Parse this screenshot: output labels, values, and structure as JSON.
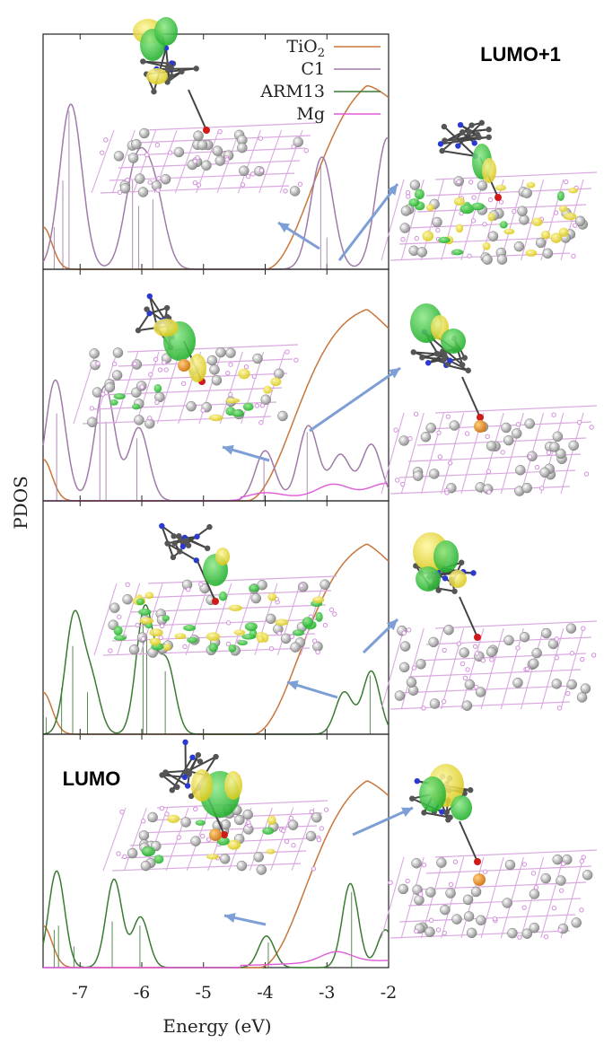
{
  "chart_data": {
    "type": "line",
    "xlabel": "Energy (eV)",
    "ylabel": "PDOS",
    "xlim": [
      -7.6,
      -2
    ],
    "x_ticks": [
      "-7",
      "-6",
      "-5",
      "-4",
      "-3",
      "-2"
    ],
    "x_tick_values": [
      -7,
      -6,
      -5,
      -4,
      -3,
      -2
    ],
    "legend": {
      "placement": "top-right",
      "entries": [
        {
          "name": "TiO2",
          "base": "TiO",
          "sub": "2",
          "color": "#c8763a"
        },
        {
          "name": "C1",
          "base": "C1",
          "sub": "",
          "color": "#a07aa8"
        },
        {
          "name": "ARM13",
          "base": "ARM13",
          "sub": "",
          "color": "#3a7a33"
        },
        {
          "name": "Mg",
          "base": "Mg",
          "sub": "",
          "color": "#e05ad8"
        }
      ]
    },
    "colors": {
      "TiO2": "#c8763a",
      "C1": "#a07aa8",
      "ARM13": "#3a7a33",
      "Mg": "#e05ad8"
    },
    "panels": [
      {
        "molecule": "C1",
        "orbital_label": "LUMO+1",
        "ti_onset": -4.0,
        "peaks": [
          [
            -7.15,
            0.78
          ],
          [
            -6.1,
            0.45
          ],
          [
            -5.8,
            0.35
          ],
          [
            -3.08,
            0.53
          ],
          [
            -2.02,
            0.62
          ]
        ],
        "width": 0.18,
        "sticks": [
          [
            -7.42,
            0.2
          ],
          [
            -7.28,
            0.42
          ],
          [
            -7.18,
            0.75
          ],
          [
            -6.15,
            0.42
          ],
          [
            -6.05,
            0.3
          ],
          [
            -5.82,
            0.33
          ],
          [
            -3.1,
            0.5
          ],
          [
            -3.0,
            0.15
          ]
        ],
        "mg_peaks": []
      },
      {
        "molecule": "C1",
        "orbital_label": "",
        "ti_onset": -4.3,
        "peaks": [
          [
            -7.4,
            0.58
          ],
          [
            -6.6,
            0.55
          ],
          [
            -6.05,
            0.35
          ],
          [
            -4.0,
            0.24
          ],
          [
            -3.3,
            0.36
          ],
          [
            -2.78,
            0.22
          ],
          [
            -2.28,
            0.27
          ]
        ],
        "width": 0.16,
        "sticks": [
          [
            -7.38,
            0.42
          ],
          [
            -6.68,
            0.45
          ],
          [
            -6.58,
            0.38
          ],
          [
            -6.08,
            0.3
          ],
          [
            -4.02,
            0.2
          ],
          [
            -3.32,
            0.33
          ]
        ],
        "mg_peaks": [
          [
            -4.0,
            0.025
          ],
          [
            -2.9,
            0.055
          ],
          [
            -2.05,
            0.05
          ]
        ]
      },
      {
        "molecule": "ARM13",
        "orbital_label": "",
        "ti_onset": -4.2,
        "peaks": [
          [
            -7.1,
            0.55
          ],
          [
            -6.82,
            0.25
          ],
          [
            -5.95,
            0.6
          ],
          [
            -5.6,
            0.34
          ],
          [
            -2.72,
            0.2
          ],
          [
            -2.28,
            0.3
          ]
        ],
        "width": 0.14,
        "sticks": [
          [
            -7.55,
            0.08
          ],
          [
            -7.3,
            0.22
          ],
          [
            -7.12,
            0.42
          ],
          [
            -6.88,
            0.2
          ],
          [
            -5.98,
            0.55
          ],
          [
            -5.92,
            0.45
          ],
          [
            -5.62,
            0.3
          ],
          [
            -2.3,
            0.28
          ]
        ],
        "mg_peaks": []
      },
      {
        "molecule": "ARM13",
        "orbital_label": "LUMO",
        "ti_onset": -4.1,
        "peaks": [
          [
            -7.38,
            0.46
          ],
          [
            -6.45,
            0.42
          ],
          [
            -6.02,
            0.24
          ],
          [
            -3.98,
            0.15
          ],
          [
            -2.62,
            0.4
          ],
          [
            -2.05,
            0.18
          ]
        ],
        "width": 0.13,
        "sticks": [
          [
            -7.42,
            0.18
          ],
          [
            -7.35,
            0.2
          ],
          [
            -7.1,
            0.1
          ],
          [
            -6.48,
            0.22
          ],
          [
            -6.03,
            0.2
          ],
          [
            -3.95,
            0.12
          ],
          [
            -2.6,
            0.36
          ]
        ],
        "mg_peaks": [
          [
            -2.85,
            0.05
          ]
        ]
      }
    ]
  }
}
